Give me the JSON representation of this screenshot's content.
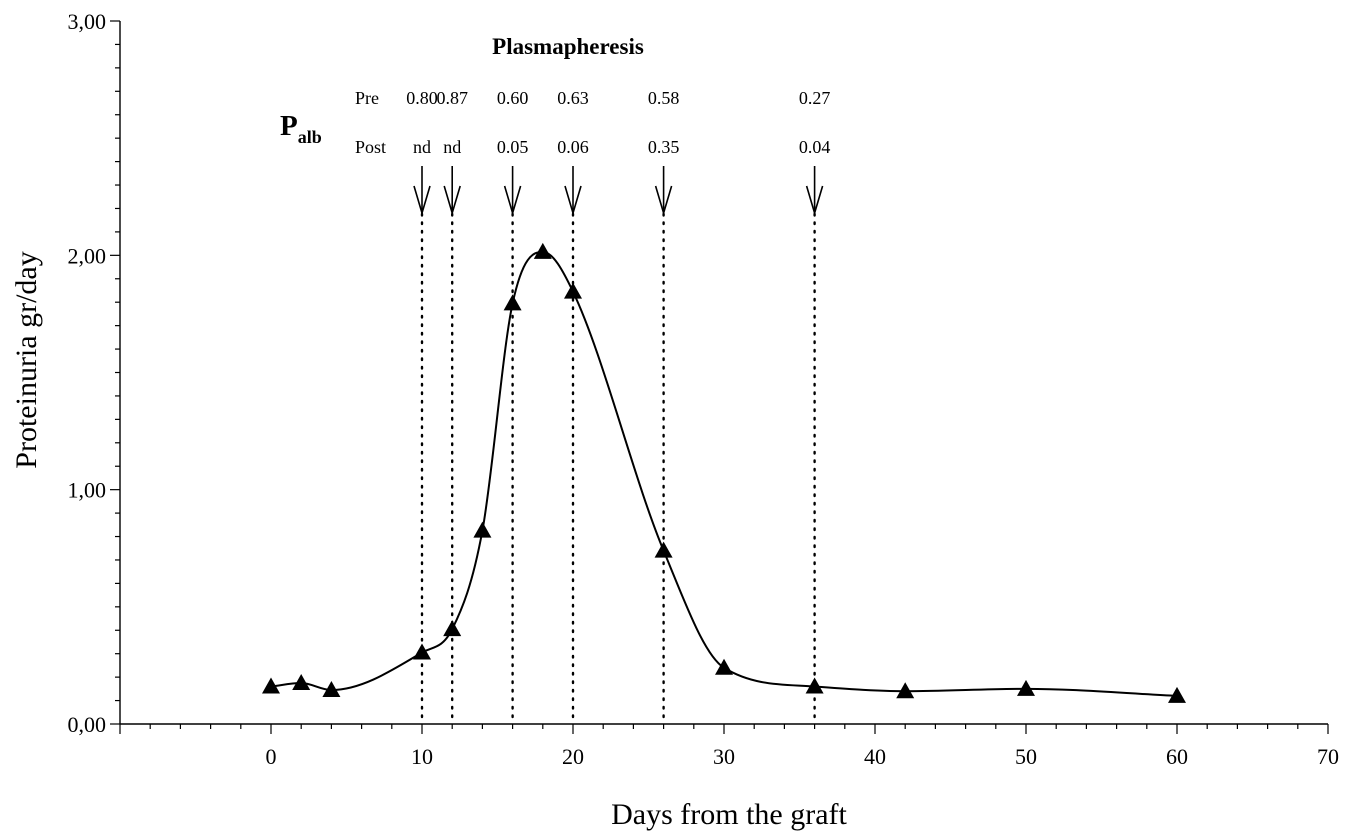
{
  "chart_data": {
    "type": "line",
    "xlabel": "Days from the graft",
    "ylabel": "Proteinuria  gr/day",
    "xlim": [
      -10,
      70
    ],
    "ylim": [
      0,
      3
    ],
    "x_ticks": [
      "0",
      "10",
      "20",
      "30",
      "40",
      "50",
      "60",
      "70"
    ],
    "y_ticks": [
      "0,00",
      "1,00",
      "2,00",
      "3,00"
    ],
    "series": [
      {
        "x": [
          0,
          2,
          4,
          10,
          12,
          14,
          16,
          18,
          20,
          26,
          30,
          36,
          42,
          50,
          60
        ],
        "y": [
          0.16,
          0.175,
          0.145,
          0.305,
          0.405,
          0.825,
          1.795,
          2.015,
          1.845,
          0.74,
          0.24,
          0.16,
          0.14,
          0.15,
          0.12
        ]
      }
    ],
    "annotation": {
      "title": "Plasmapheresis",
      "palb_label": "P",
      "palb_sub": "alb",
      "pre_label": "Pre",
      "post_label": "Post",
      "events": [
        {
          "day": 10,
          "pre": "0.80",
          "post": "nd"
        },
        {
          "day": 12,
          "pre": "0.87",
          "post": "nd"
        },
        {
          "day": 16,
          "pre": "0.60",
          "post": "0.05"
        },
        {
          "day": 20,
          "pre": "0.63",
          "post": "0.06"
        },
        {
          "day": 26,
          "pre": "0.58",
          "post": "0.35"
        },
        {
          "day": 36,
          "pre": "0.27",
          "post": "0.04"
        }
      ]
    },
    "grid": false,
    "legend": "none",
    "marker": "filled-triangle",
    "line_color": "#000000"
  }
}
